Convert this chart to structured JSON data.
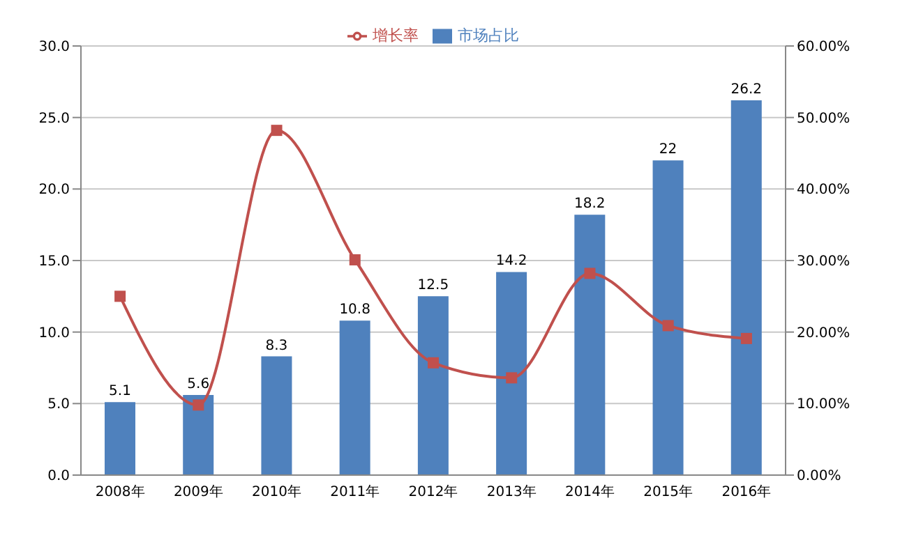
{
  "chart_data": {
    "type": "bar",
    "categories": [
      "2008年",
      "2009年",
      "2010年",
      "2011年",
      "2012年",
      "2013年",
      "2014年",
      "2015年",
      "2016年"
    ],
    "series": [
      {
        "name": "市场占比",
        "color": "#4f81bd",
        "values": [
          5.1,
          5.6,
          8.3,
          10.8,
          12.5,
          14.2,
          18.2,
          22,
          26.2
        ],
        "value_labels": [
          "5.1",
          "5.6",
          "8.3",
          "10.8",
          "12.5",
          "14.2",
          "18.2",
          "22",
          "26.2"
        ]
      },
      {
        "name": "增长率",
        "type": "line",
        "axis": "y2",
        "color": "#c0504d",
        "marker": "square",
        "values": [
          25.0,
          9.8,
          48.2,
          30.1,
          15.7,
          13.6,
          28.2,
          20.9,
          19.1
        ]
      }
    ],
    "ylim": [
      0,
      30
    ],
    "yticks": [
      {
        "value": 0,
        "label": "0.0"
      },
      {
        "value": 5,
        "label": "5.0"
      },
      {
        "value": 10,
        "label": "10.0"
      },
      {
        "value": 15,
        "label": "15.0"
      },
      {
        "value": 20,
        "label": "20.0"
      },
      {
        "value": 25,
        "label": "25.0"
      },
      {
        "value": 30,
        "label": "30.0"
      }
    ],
    "y2lim": [
      0,
      60
    ],
    "y2ticks": [
      {
        "value": 0,
        "label": "0.00%"
      },
      {
        "value": 10,
        "label": "10.00%"
      },
      {
        "value": 20,
        "label": "20.00%"
      },
      {
        "value": 30,
        "label": "30.00%"
      },
      {
        "value": 40,
        "label": "40.00%"
      },
      {
        "value": 50,
        "label": "50.00%"
      },
      {
        "value": 60,
        "label": "60.00%"
      }
    ],
    "grid": "y",
    "legend": "top"
  }
}
